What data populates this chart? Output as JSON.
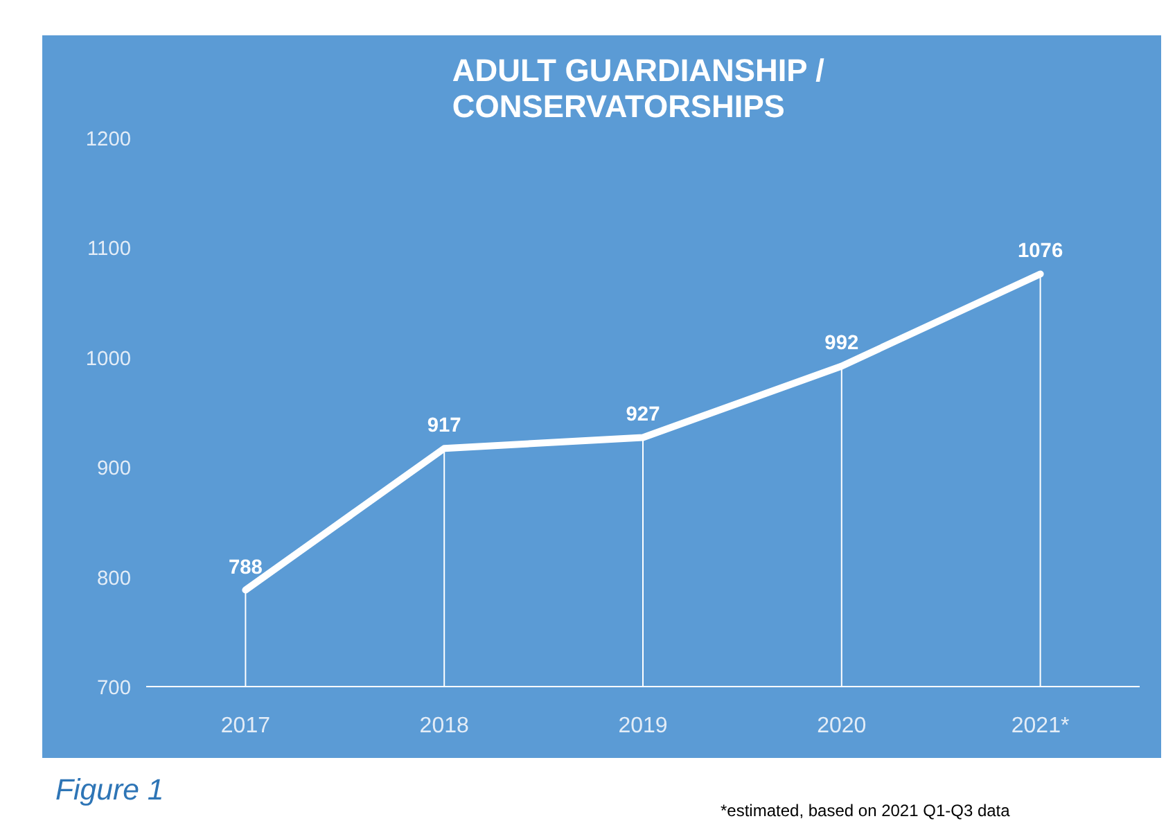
{
  "chart_data": {
    "type": "line",
    "title": "ADULT GUARDIANSHIP  /\nCONSERVATORSHIPS",
    "categories": [
      "2017",
      "2018",
      "2019",
      "2020",
      "2021*"
    ],
    "series": [
      {
        "color": "#ffffff",
        "values": [
          788,
          917,
          927,
          992,
          1076
        ]
      }
    ],
    "ylim": [
      700,
      1200
    ],
    "yticks": [
      700,
      800,
      900,
      1000,
      1100,
      1200
    ],
    "data_labels": true,
    "annotations": [
      "Figure 1",
      "*estimated, based on 2021 Q1-Q3 data"
    ]
  }
}
